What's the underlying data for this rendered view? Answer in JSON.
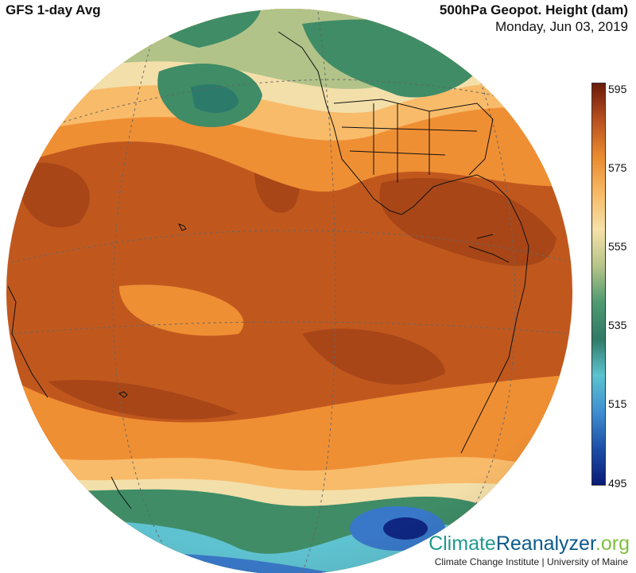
{
  "header": {
    "left_title": "GFS 1-day Avg",
    "right_title": "500hPa Geopot. Height (dam)",
    "date": "Monday, Jun 03, 2019"
  },
  "colorbar": {
    "ticks": [
      "595",
      "575",
      "555",
      "535",
      "515",
      "495"
    ],
    "stops": [
      "#6b1a0a",
      "#b8501f",
      "#e98a30",
      "#f7b965",
      "#f6e1a8",
      "#b7c48a",
      "#4e9a70",
      "#2f7a66",
      "#5cc3cf",
      "#3e8fd0",
      "#1d4fa8",
      "#0a1a78"
    ]
  },
  "map": {
    "colors": {
      "ocean_warm": "#c0581e",
      "deep_warm": "#a84618",
      "orange": "#ef8f33",
      "light_orange": "#f8bb6a",
      "cream": "#f3dfa9",
      "olive": "#b2c389",
      "green": "#3f8c67",
      "teal": "#2b7a6a",
      "cyan": "#5fc2d0",
      "blue": "#3978c8",
      "navy": "#0f2782"
    }
  },
  "footer": {
    "brand_part1": "Climate",
    "brand_part2": "Reanalyzer",
    "brand_part3": ".org",
    "credit": "Climate Change Institute | University of Maine"
  }
}
